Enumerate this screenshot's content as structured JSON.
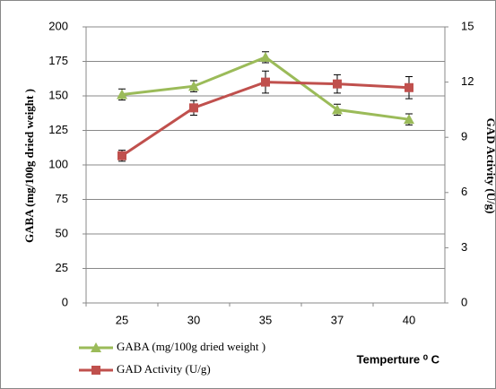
{
  "chart_data": {
    "type": "line",
    "categories": [
      "25",
      "30",
      "35",
      "37",
      "40"
    ],
    "series": [
      {
        "name": "GABA (mg/100g dried weight )",
        "color": "#9bbb59",
        "marker": "triangle",
        "values": [
          151,
          157,
          178,
          140,
          133
        ],
        "errors": [
          4,
          4,
          4,
          4,
          4
        ]
      },
      {
        "name": "GAD Activity (U/g)",
        "color": "#c0504d",
        "marker": "square",
        "axis": "y2",
        "values": [
          8.0,
          10.6,
          12.0,
          11.9,
          11.7
        ],
        "errors": [
          0.3,
          0.4,
          0.6,
          0.5,
          0.6
        ]
      }
    ],
    "ylabel": "GABA (mg/100g dried weight )",
    "y2label": "GAD Activity (U/g)",
    "xlabel": "Temperture ⁰ C",
    "ylim": [
      0,
      200
    ],
    "yticks": [
      0,
      25,
      50,
      75,
      100,
      125,
      150,
      175,
      200
    ],
    "y2lim": [
      0,
      15
    ],
    "y2ticks": [
      0,
      3,
      6,
      9,
      12,
      15
    ],
    "grid": true
  }
}
